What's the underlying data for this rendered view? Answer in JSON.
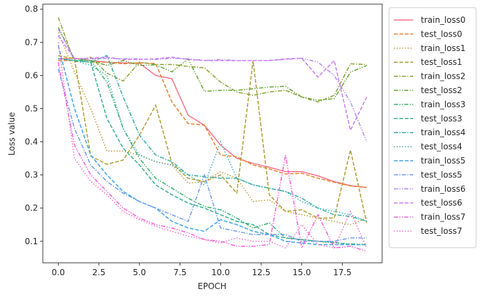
{
  "chart_data": {
    "type": "line",
    "xlabel": "EPOCH",
    "ylabel": "Loss value",
    "xlim": [
      -0.95,
      19.95
    ],
    "ylim": [
      0.035,
      0.815
    ],
    "xticks": [
      0.0,
      2.5,
      5.0,
      7.5,
      10.0,
      12.5,
      15.0,
      17.5
    ],
    "xtick_labels": [
      "0.0",
      "2.5",
      "5.0",
      "7.5",
      "10.0",
      "12.5",
      "15.0",
      "17.5"
    ],
    "yticks": [
      0.1,
      0.2,
      0.3,
      0.4,
      0.5,
      0.6,
      0.7,
      0.8
    ],
    "ytick_labels": [
      "0.1",
      "0.2",
      "0.3",
      "0.4",
      "0.5",
      "0.6",
      "0.7",
      "0.8"
    ],
    "grid": false,
    "legend_position": "outside-right",
    "x": [
      0,
      1,
      2,
      3,
      4,
      5,
      6,
      7,
      8,
      9,
      10,
      11,
      12,
      13,
      14,
      15,
      16,
      17,
      18,
      19
    ],
    "series": [
      {
        "name": "train_loss0",
        "color": "#f77189",
        "dash": "solid",
        "values": [
          0.65,
          0.652,
          0.645,
          0.64,
          0.638,
          0.637,
          0.6,
          0.59,
          0.48,
          0.45,
          0.39,
          0.35,
          0.335,
          0.323,
          0.31,
          0.31,
          0.297,
          0.28,
          0.268,
          0.262
        ]
      },
      {
        "name": "test_loss0",
        "color": "#e7812c",
        "dash": "dashed",
        "values": [
          0.645,
          0.645,
          0.64,
          0.64,
          0.635,
          0.638,
          0.636,
          0.52,
          0.455,
          0.45,
          0.36,
          0.355,
          0.33,
          0.318,
          0.303,
          0.305,
          0.29,
          0.278,
          0.267,
          0.262
        ]
      },
      {
        "name": "train_loss1",
        "color": "#c39532",
        "dash": "dotted",
        "values": [
          0.73,
          0.61,
          0.5,
          0.372,
          0.372,
          0.36,
          0.34,
          0.33,
          0.275,
          0.28,
          0.31,
          0.29,
          0.22,
          0.225,
          0.19,
          0.18,
          0.17,
          0.16,
          0.15,
          0.17
        ]
      },
      {
        "name": "test_loss1",
        "color": "#ad9c33",
        "dash": "dashed",
        "values": [
          0.66,
          0.65,
          0.357,
          0.332,
          0.345,
          0.42,
          0.51,
          0.335,
          0.29,
          0.28,
          0.3,
          0.245,
          0.645,
          0.24,
          0.19,
          0.195,
          0.17,
          0.17,
          0.375,
          0.155
        ]
      },
      {
        "name": "train_loss2",
        "color": "#8ba034",
        "dash": "dashdot",
        "values": [
          0.775,
          0.64,
          0.655,
          0.607,
          0.583,
          0.64,
          0.633,
          0.633,
          0.627,
          0.623,
          0.58,
          0.55,
          0.54,
          0.55,
          0.555,
          0.535,
          0.52,
          0.54,
          0.635,
          0.633
        ]
      },
      {
        "name": "test_loss2",
        "color": "#65a534",
        "dash": "dashdotdot",
        "values": [
          0.745,
          0.65,
          0.645,
          0.63,
          0.645,
          0.63,
          0.632,
          0.611,
          0.65,
          0.552,
          0.555,
          0.555,
          0.56,
          0.565,
          0.567,
          0.535,
          0.525,
          0.53,
          0.61,
          0.63
        ]
      },
      {
        "name": "train_loss3",
        "color": "#32b165",
        "dash": "dashdotdot",
        "values": [
          0.65,
          0.645,
          0.645,
          0.58,
          0.44,
          0.35,
          0.29,
          0.26,
          0.23,
          0.205,
          0.195,
          0.17,
          0.14,
          0.155,
          0.11,
          0.105,
          0.1,
          0.095,
          0.092,
          0.09
        ]
      },
      {
        "name": "test_loss3",
        "color": "#34ae91",
        "dash": "dashed",
        "values": [
          0.65,
          0.645,
          0.64,
          0.47,
          0.38,
          0.33,
          0.27,
          0.24,
          0.215,
          0.2,
          0.18,
          0.16,
          0.15,
          0.12,
          0.11,
          0.105,
          0.1,
          0.097,
          0.09,
          0.09
        ]
      },
      {
        "name": "train_loss4",
        "color": "#36ada4",
        "dash": "dashdot",
        "values": [
          0.65,
          0.645,
          0.64,
          0.66,
          0.535,
          0.42,
          0.36,
          0.34,
          0.3,
          0.295,
          0.29,
          0.29,
          0.27,
          0.26,
          0.25,
          0.23,
          0.2,
          0.18,
          0.175,
          0.16
        ]
      },
      {
        "name": "test_loss4",
        "color": "#38aab3",
        "dash": "dotted",
        "values": [
          0.65,
          0.645,
          0.63,
          0.6,
          0.44,
          0.36,
          0.34,
          0.33,
          0.3,
          0.27,
          0.4,
          0.29,
          0.27,
          0.26,
          0.25,
          0.22,
          0.2,
          0.19,
          0.18,
          0.16
        ]
      },
      {
        "name": "train_loss5",
        "color": "#3ba3ec",
        "dash": "dashed",
        "values": [
          0.69,
          0.5,
          0.36,
          0.3,
          0.25,
          0.22,
          0.2,
          0.16,
          0.14,
          0.13,
          0.165,
          0.15,
          0.13,
          0.12,
          0.1,
          0.095,
          0.09,
          0.09,
          0.09,
          0.09
        ]
      },
      {
        "name": "test_loss5",
        "color": "#6e9bf4",
        "dash": "dashdot",
        "values": [
          0.62,
          0.44,
          0.33,
          0.28,
          0.245,
          0.22,
          0.2,
          0.18,
          0.16,
          0.3,
          0.14,
          0.13,
          0.12,
          0.12,
          0.12,
          0.1,
          0.1,
          0.1,
          0.11,
          0.11
        ]
      },
      {
        "name": "train_loss6",
        "color": "#ae8ff4",
        "dash": "dashdotdot",
        "values": [
          0.74,
          0.65,
          0.65,
          0.652,
          0.65,
          0.65,
          0.648,
          0.652,
          0.65,
          0.645,
          0.648,
          0.645,
          0.645,
          0.645,
          0.648,
          0.652,
          0.64,
          0.6,
          0.52,
          0.4
        ]
      },
      {
        "name": "test_loss6",
        "color": "#cc7af4",
        "dash": "dashed",
        "values": [
          0.72,
          0.65,
          0.652,
          0.655,
          0.648,
          0.648,
          0.65,
          0.655,
          0.648,
          0.645,
          0.645,
          0.645,
          0.645,
          0.645,
          0.65,
          0.652,
          0.595,
          0.645,
          0.435,
          0.535
        ]
      },
      {
        "name": "train_loss7",
        "color": "#f45fda",
        "dash": "dashdotdot",
        "values": [
          0.64,
          0.39,
          0.3,
          0.25,
          0.2,
          0.17,
          0.15,
          0.14,
          0.125,
          0.105,
          0.1,
          0.085,
          0.085,
          0.09,
          0.36,
          0.08,
          0.18,
          0.08,
          0.085,
          0.07
        ]
      },
      {
        "name": "test_loss7",
        "color": "#f668c2",
        "dash": "dotted",
        "values": [
          0.7,
          0.35,
          0.28,
          0.24,
          0.19,
          0.165,
          0.145,
          0.13,
          0.115,
          0.105,
          0.095,
          0.11,
          0.1,
          0.1,
          0.08,
          0.15,
          0.09,
          0.08,
          0.19,
          0.08
        ]
      }
    ]
  }
}
